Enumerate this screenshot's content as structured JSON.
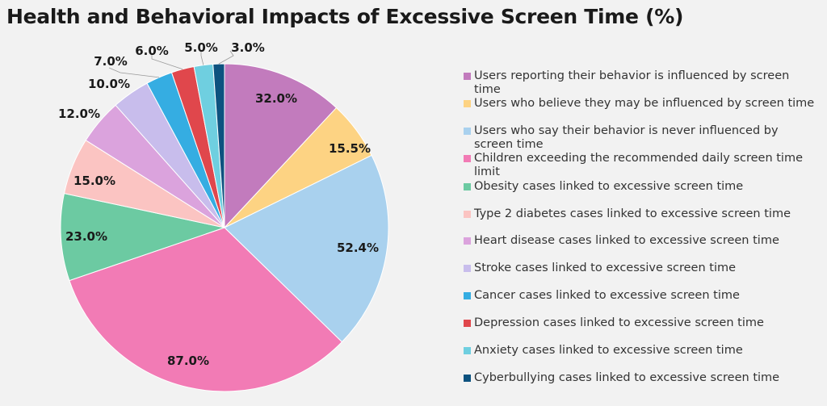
{
  "chart_data": {
    "type": "pie",
    "title": "Health and Behavioral Impacts of Excessive Screen Time (%)",
    "legend_position": "right",
    "slices": [
      {
        "label": "Users reporting their behavior is influenced by screen time",
        "value": 32.0,
        "display": "32.0%",
        "color": "#c27bbd"
      },
      {
        "label": "Users who believe they may be influenced by screen time",
        "value": 15.5,
        "display": "15.5%",
        "color": "#fdd383"
      },
      {
        "label": "Users who say their behavior is never influenced by screen time",
        "value": 52.4,
        "display": "52.4%",
        "color": "#a9d1ee"
      },
      {
        "label": "Children exceeding the recommended daily screen time limit",
        "value": 87.0,
        "display": "87.0%",
        "color": "#f27bb5"
      },
      {
        "label": "Obesity cases linked to excessive screen time",
        "value": 23.0,
        "display": "23.0%",
        "color": "#6ccaa2"
      },
      {
        "label": "Type 2 diabetes cases linked to excessive screen time",
        "value": 15.0,
        "display": "15.0%",
        "color": "#fbc4c2"
      },
      {
        "label": "Heart disease cases linked to excessive screen time",
        "value": 12.0,
        "display": "12.0%",
        "color": "#dba3dd"
      },
      {
        "label": "Stroke cases linked to excessive screen time",
        "value": 10.0,
        "display": "10.0%",
        "color": "#c8bdec"
      },
      {
        "label": "Cancer cases linked to excessive screen time",
        "value": 7.0,
        "display": "7.0%",
        "color": "#35ade2"
      },
      {
        "label": "Depression cases linked to excessive screen time",
        "value": 6.0,
        "display": "6.0%",
        "color": "#e0474c"
      },
      {
        "label": "Anxiety cases linked to excessive screen time",
        "value": 5.0,
        "display": "5.0%",
        "color": "#6fcfe0"
      },
      {
        "label": "Cyberbullying cases linked to excessive screen time",
        "value": 3.0,
        "display": "3.0%",
        "color": "#0d527f"
      }
    ]
  }
}
